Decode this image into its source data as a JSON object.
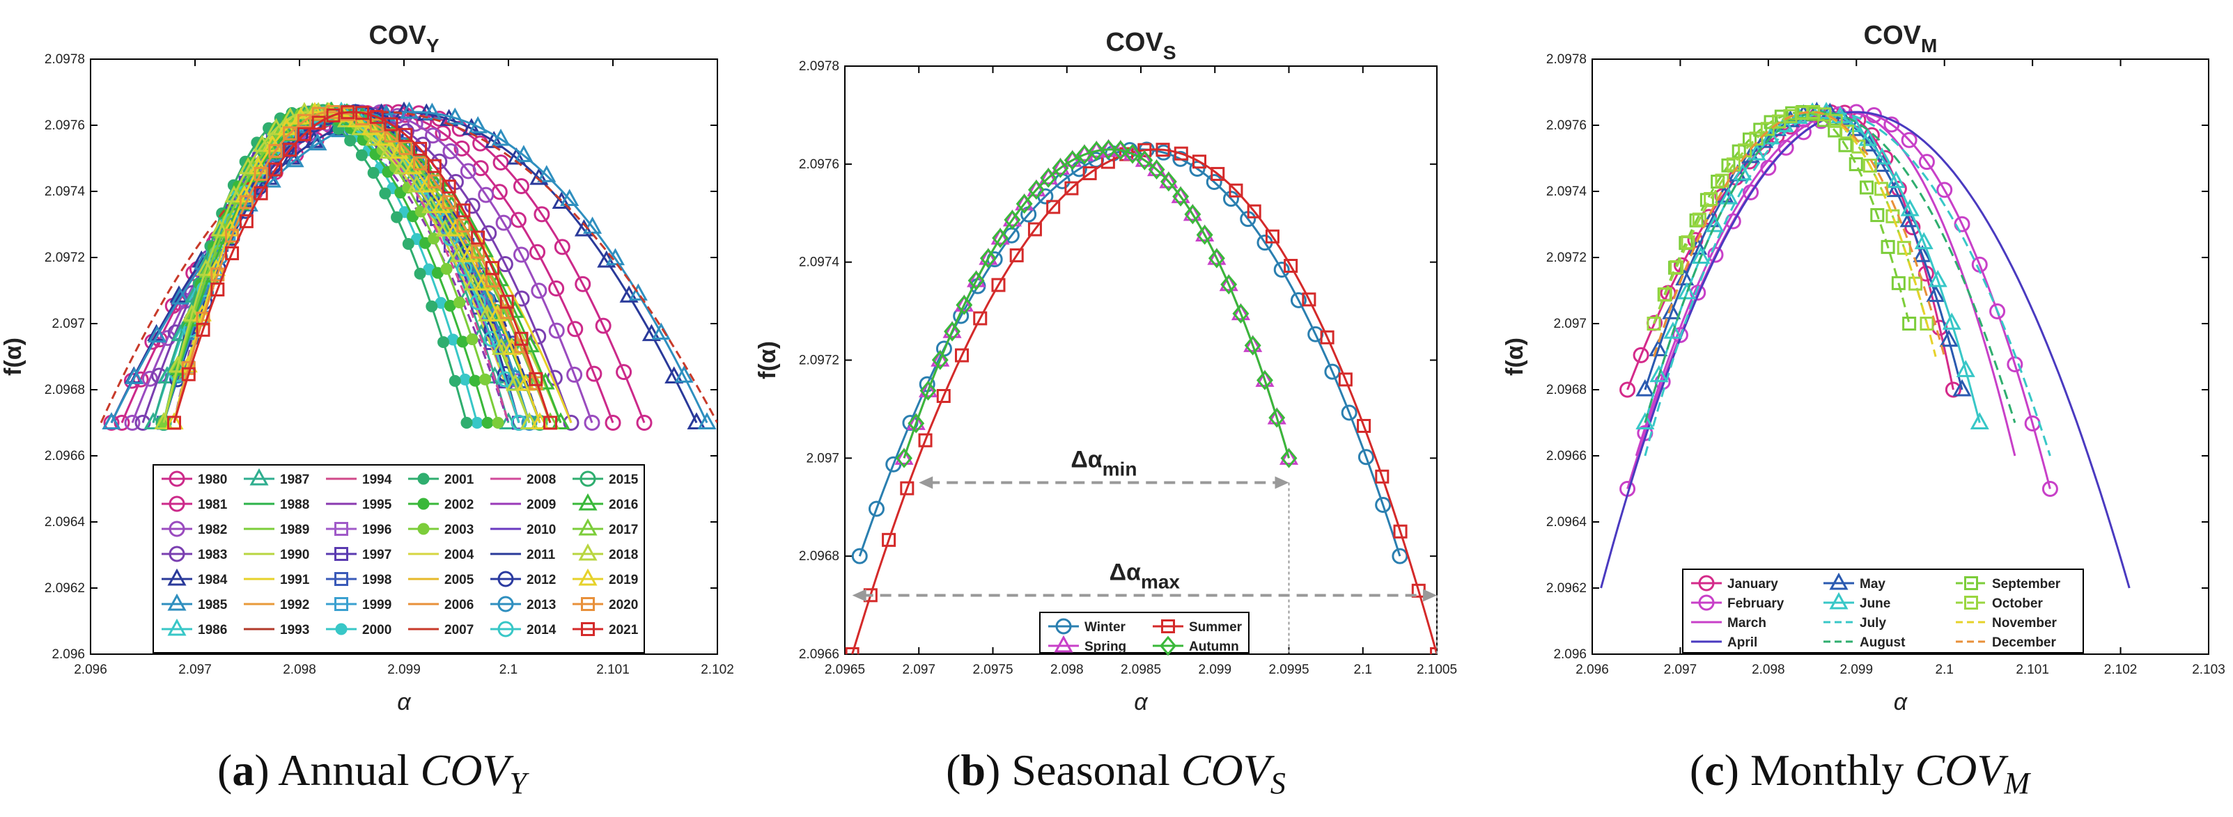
{
  "captions": [
    {
      "letter": "a",
      "text": "Annual",
      "var": "COV",
      "sub": "Y"
    },
    {
      "letter": "b",
      "text": "Seasonal",
      "var": "COV",
      "sub": "S"
    },
    {
      "letter": "c",
      "text": "Monthly",
      "var": "COV",
      "sub": "M"
    }
  ],
  "chart_data": [
    {
      "type": "line",
      "title": "COV",
      "title_sub": "Y",
      "xlabel": "α",
      "ylabel": "f(α)",
      "xlim": [
        2.096,
        2.102
      ],
      "ylim": [
        2.096,
        2.0978
      ],
      "xticks": [
        "2.096",
        "2.097",
        "2.098",
        "2.099",
        "2.1",
        "2.101",
        "2.102"
      ],
      "yticks": [
        "2.096",
        "2.0962",
        "2.0964",
        "2.0966",
        "2.0968",
        "2.097",
        "2.0972",
        "2.0974",
        "2.0976",
        "2.0978"
      ],
      "grid": false,
      "legend_position": "bottom",
      "legend_columns": 6,
      "series": [
        {
          "name": "1980",
          "color": "#cc2a8a",
          "marker": "circle",
          "left": 2.0962,
          "peak": 2.099,
          "right": 2.1013
        },
        {
          "name": "1981",
          "color": "#cc2a8a",
          "marker": "circle",
          "left": 2.0963,
          "peak": 2.0988,
          "right": 2.101
        },
        {
          "name": "1982",
          "color": "#9a4bbf",
          "marker": "circle",
          "left": 2.0964,
          "peak": 2.0987,
          "right": 2.1008
        },
        {
          "name": "1983",
          "color": "#7a3fb0",
          "marker": "circle",
          "left": 2.0965,
          "peak": 2.0985,
          "right": 2.1006
        },
        {
          "name": "1984",
          "color": "#2a3a9a",
          "marker": "triangle",
          "left": 2.0962,
          "peak": 2.099,
          "right": 2.1018
        },
        {
          "name": "1985",
          "color": "#2f8fbf",
          "marker": "triangle",
          "left": 2.0962,
          "peak": 2.0991,
          "right": 2.1019
        },
        {
          "name": "1986",
          "color": "#38c7c7",
          "marker": "triangle",
          "left": 2.0966,
          "peak": 2.0984,
          "right": 2.1002
        },
        {
          "name": "1987",
          "color": "#2fae8f",
          "marker": "triangle",
          "left": 2.0966,
          "peak": 2.0983,
          "right": 2.1
        },
        {
          "name": "1988",
          "color": "#2db34a",
          "marker": "none",
          "left": 2.0967,
          "peak": 2.0981,
          "right": 2.1003
        },
        {
          "name": "1989",
          "color": "#7ccd3a",
          "marker": "none",
          "left": 2.0967,
          "peak": 2.098,
          "right": 2.1002
        },
        {
          "name": "1990",
          "color": "#b8d640",
          "marker": "none",
          "left": 2.0968,
          "peak": 2.0981,
          "right": 2.1005
        },
        {
          "name": "1991",
          "color": "#e6d22a",
          "marker": "none",
          "left": 2.0968,
          "peak": 2.0982,
          "right": 2.1006
        },
        {
          "name": "1992",
          "color": "#e89a3a",
          "marker": "none",
          "left": 2.0968,
          "peak": 2.0983,
          "right": 2.1004
        },
        {
          "name": "1993",
          "color": "#b23a2a",
          "marker": "none",
          "left": 2.0967,
          "peak": 2.0982,
          "right": 2.1003
        },
        {
          "name": "1994",
          "color": "#d04a8a",
          "marker": "none",
          "left": 2.0968,
          "peak": 2.0981,
          "right": 2.1001
        },
        {
          "name": "1995",
          "color": "#8a3ab0",
          "marker": "none",
          "left": 2.0968,
          "peak": 2.098,
          "right": 2.1
        },
        {
          "name": "1996",
          "color": "#a05ac8",
          "marker": "square",
          "left": 2.0967,
          "peak": 2.0983,
          "right": 2.1002
        },
        {
          "name": "1997",
          "color": "#5a3ab0",
          "marker": "square",
          "left": 2.0967,
          "peak": 2.0982,
          "right": 2.1001
        },
        {
          "name": "1998",
          "color": "#3a5ab8",
          "marker": "square",
          "left": 2.0967,
          "peak": 2.0983,
          "right": 2.1003
        },
        {
          "name": "1999",
          "color": "#3aa0d0",
          "marker": "square",
          "left": 2.0968,
          "peak": 2.0982,
          "right": 2.1002
        },
        {
          "name": "2000",
          "color": "#38c7c7",
          "marker": "dot",
          "left": 2.0967,
          "peak": 2.0981,
          "right": 2.0997
        },
        {
          "name": "2001",
          "color": "#2fae6f",
          "marker": "dot",
          "left": 2.0967,
          "peak": 2.098,
          "right": 2.0996
        },
        {
          "name": "2002",
          "color": "#3ab83a",
          "marker": "dot",
          "left": 2.0967,
          "peak": 2.0981,
          "right": 2.0998
        },
        {
          "name": "2003",
          "color": "#7ccd3a",
          "marker": "dot",
          "left": 2.0967,
          "peak": 2.0982,
          "right": 2.0999
        },
        {
          "name": "2004",
          "color": "#d6d640",
          "marker": "none",
          "left": 2.0968,
          "peak": 2.0981,
          "right": 2.1001
        },
        {
          "name": "2005",
          "color": "#e6b82a",
          "marker": "none",
          "left": 2.0968,
          "peak": 2.0982,
          "right": 2.1002
        },
        {
          "name": "2006",
          "color": "#e8903a",
          "marker": "none",
          "left": 2.0967,
          "peak": 2.0983,
          "right": 2.1003
        },
        {
          "name": "2007",
          "color": "#c83a2a",
          "marker": "none",
          "left": 2.0961,
          "peak": 2.0988,
          "right": 2.102
        },
        {
          "name": "2008",
          "color": "#d04a9a",
          "marker": "none",
          "left": 2.0967,
          "peak": 2.0982,
          "right": 2.1
        },
        {
          "name": "2009",
          "color": "#9a3ab8",
          "marker": "none",
          "left": 2.0967,
          "peak": 2.0982,
          "right": 2.1001
        },
        {
          "name": "2010",
          "color": "#6a3ac0",
          "marker": "none",
          "left": 2.0967,
          "peak": 2.0983,
          "right": 2.1002
        },
        {
          "name": "2011",
          "color": "#2a3a9a",
          "marker": "none",
          "left": 2.0967,
          "peak": 2.0984,
          "right": 2.1003
        },
        {
          "name": "2012",
          "color": "#2a3aa0",
          "marker": "circle",
          "left": 2.0967,
          "peak": 2.0985,
          "right": 2.1001
        },
        {
          "name": "2013",
          "color": "#2f8fbf",
          "marker": "circle",
          "left": 2.0967,
          "peak": 2.0984,
          "right": 2.1002
        },
        {
          "name": "2014",
          "color": "#38c7c7",
          "marker": "circle",
          "left": 2.0967,
          "peak": 2.0983,
          "right": 2.1001
        },
        {
          "name": "2015",
          "color": "#2fae6f",
          "marker": "circle",
          "left": 2.0967,
          "peak": 2.0982,
          "right": 2.1003
        },
        {
          "name": "2016",
          "color": "#3ab83a",
          "marker": "triangle",
          "left": 2.0967,
          "peak": 2.0983,
          "right": 2.1005
        },
        {
          "name": "2017",
          "color": "#7ccd3a",
          "marker": "triangle",
          "left": 2.0967,
          "peak": 2.0982,
          "right": 2.1004
        },
        {
          "name": "2018",
          "color": "#b8d640",
          "marker": "triangle",
          "left": 2.0967,
          "peak": 2.0981,
          "right": 2.1002
        },
        {
          "name": "2019",
          "color": "#e6d22a",
          "marker": "triangle",
          "left": 2.0968,
          "peak": 2.0982,
          "right": 2.1003
        },
        {
          "name": "2020",
          "color": "#e8903a",
          "marker": "square",
          "left": 2.0968,
          "peak": 2.0983,
          "right": 2.1004
        },
        {
          "name": "2021",
          "color": "#d42a2a",
          "marker": "square",
          "left": 2.0968,
          "peak": 2.0985,
          "right": 2.1004
        }
      ]
    },
    {
      "type": "line",
      "title": "COV",
      "title_sub": "S",
      "xlabel": "α",
      "ylabel": "f(α)",
      "xlim": [
        2.0965,
        2.1005
      ],
      "ylim": [
        2.0966,
        2.0978
      ],
      "xticks": [
        "2.0965",
        "2.097",
        "2.0975",
        "2.098",
        "2.0985",
        "2.099",
        "2.0995",
        "2.1",
        "2.1005"
      ],
      "yticks": [
        "2.0966",
        "2.0968",
        "2.097",
        "2.0972",
        "2.0974",
        "2.0976",
        "2.0978"
      ],
      "grid": false,
      "legend_position": "bottom-center",
      "legend_columns": 2,
      "series": [
        {
          "name": "Winter",
          "color": "#2a7fb0",
          "marker": "circle",
          "left": 2.0966,
          "peak": 2.0985,
          "right": 2.10025,
          "ymin": 2.0968
        },
        {
          "name": "Summer",
          "color": "#d42a2a",
          "marker": "square",
          "left": 2.09655,
          "peak": 2.0986,
          "right": 2.1005,
          "ymin": 2.0966
        },
        {
          "name": "Spring",
          "color": "#c840c8",
          "marker": "triangle",
          "left": 2.0969,
          "peak": 2.0983,
          "right": 2.0995,
          "ymin": 2.097
        },
        {
          "name": "Autumn",
          "color": "#3ab83a",
          "marker": "diamond",
          "left": 2.0969,
          "peak": 2.0983,
          "right": 2.0995,
          "ymin": 2.097
        }
      ],
      "annotations": [
        {
          "label": "Δα",
          "sub": "min",
          "x_from": 2.097,
          "x_to": 2.0995,
          "y": 2.09695
        },
        {
          "label": "Δα",
          "sub": "max",
          "x_from": 2.09655,
          "x_to": 2.1005,
          "y": 2.09672
        }
      ]
    },
    {
      "type": "line",
      "title": "COV",
      "title_sub": "M",
      "xlabel": "α",
      "ylabel": "f(α)",
      "xlim": [
        2.096,
        2.103
      ],
      "ylim": [
        2.096,
        2.0978
      ],
      "xticks": [
        "2.096",
        "2.097",
        "2.098",
        "2.099",
        "2.1",
        "2.101",
        "2.102",
        "2.103"
      ],
      "yticks": [
        "2.096",
        "2.0962",
        "2.0964",
        "2.0966",
        "2.0968",
        "2.097",
        "2.0972",
        "2.0974",
        "2.0976",
        "2.0978"
      ],
      "grid": false,
      "legend_position": "bottom",
      "legend_columns": 3,
      "series": [
        {
          "name": "January",
          "color": "#d42a8a",
          "marker": "circle",
          "style": "solid",
          "left": 2.0964,
          "peak": 2.0988,
          "right": 2.1001,
          "ymin": 2.0968
        },
        {
          "name": "February",
          "color": "#c840c8",
          "marker": "circle",
          "style": "solid",
          "left": 2.0964,
          "peak": 2.099,
          "right": 2.1012,
          "ymin": 2.0965
        },
        {
          "name": "March",
          "color": "#c840c8",
          "marker": "none",
          "style": "solid",
          "left": 2.0965,
          "peak": 2.0989,
          "right": 2.1008,
          "ymin": 2.0966
        },
        {
          "name": "April",
          "color": "#4a3ac0",
          "marker": "none",
          "style": "solid",
          "left": 2.0961,
          "peak": 2.099,
          "right": 2.1021,
          "ymin": 2.0962
        },
        {
          "name": "May",
          "color": "#2a5ab0",
          "marker": "triangle",
          "style": "solid",
          "left": 2.0966,
          "peak": 2.0986,
          "right": 2.1002,
          "ymin": 2.0968
        },
        {
          "name": "June",
          "color": "#38c7c7",
          "marker": "triangle",
          "style": "solid",
          "left": 2.0966,
          "peak": 2.0986,
          "right": 2.1004,
          "ymin": 2.0967
        },
        {
          "name": "July",
          "color": "#38c7c7",
          "marker": "none",
          "style": "dashed",
          "left": 2.0966,
          "peak": 2.0987,
          "right": 2.1012,
          "ymin": 2.0966
        },
        {
          "name": "August",
          "color": "#2fae6f",
          "marker": "none",
          "style": "dashed",
          "left": 2.0966,
          "peak": 2.0986,
          "right": 2.1008,
          "ymin": 2.0967
        },
        {
          "name": "September",
          "color": "#7ccd3a",
          "marker": "square",
          "style": "dashed",
          "left": 2.0967,
          "peak": 2.0984,
          "right": 2.0996,
          "ymin": 2.097
        },
        {
          "name": "October",
          "color": "#9ad640",
          "marker": "square",
          "style": "dashed",
          "left": 2.0967,
          "peak": 2.0985,
          "right": 2.0998,
          "ymin": 2.097
        },
        {
          "name": "November",
          "color": "#e6d22a",
          "marker": "none",
          "style": "dashed",
          "left": 2.0967,
          "peak": 2.0985,
          "right": 2.0999,
          "ymin": 2.0969
        },
        {
          "name": "December",
          "color": "#e8903a",
          "marker": "none",
          "style": "dashed",
          "left": 2.0967,
          "peak": 2.0985,
          "right": 2.1,
          "ymin": 2.0969
        }
      ]
    }
  ]
}
